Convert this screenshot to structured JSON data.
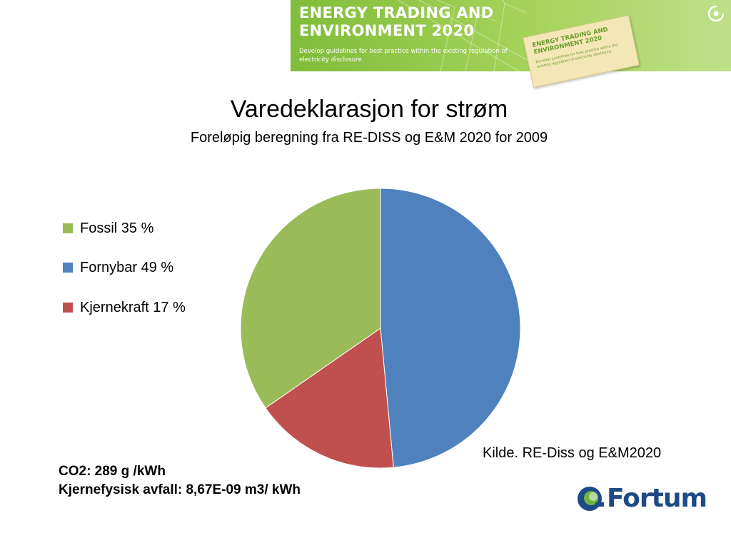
{
  "banner": {
    "title": "ENERGY TRADING AND ENVIRONMENT 2020",
    "subtitle": "Develop guidelines for best practice within the existing regulation of electricity disclosure.",
    "tag_title": "ENERGY TRADING AND ENVIRONMENT 2020",
    "tag_subtitle": "Develop guidelines for best practice within the existing regulation of electricity disclosure."
  },
  "chart_data": {
    "type": "pie",
    "title": "Varedeklarasjon for strøm",
    "subtitle": "Foreløpig beregning fra RE-DISS  og E&M 2020 for 2009",
    "slices": [
      {
        "name": "Fornybar",
        "value": 49,
        "color": "#4f81bd"
      },
      {
        "name": "Kjernekraft",
        "value": 17,
        "color": "#c0504d"
      },
      {
        "name": "Fossil",
        "value": 35,
        "color": "#9bbb59"
      }
    ],
    "start_angle_deg": 0,
    "direction": "clockwise",
    "legend": {
      "placement": "left",
      "entries": [
        {
          "label": "Fossil 35 %",
          "color": "#9bbb59"
        },
        {
          "label": "Fornybar 49 %",
          "color": "#4f81bd"
        },
        {
          "label": "Kjernekraft 17 %",
          "color": "#c0504d"
        }
      ]
    }
  },
  "footer": {
    "source": "Kilde. RE-Diss og E&M2020",
    "co2": "CO2:  289 g /kWh",
    "waste": "Kjernefysisk avfall: 8,67E-09 m3/ kWh"
  },
  "logo": {
    "text": "Fortum",
    "color": "#1e4a86",
    "accent": "#6fb43f"
  }
}
